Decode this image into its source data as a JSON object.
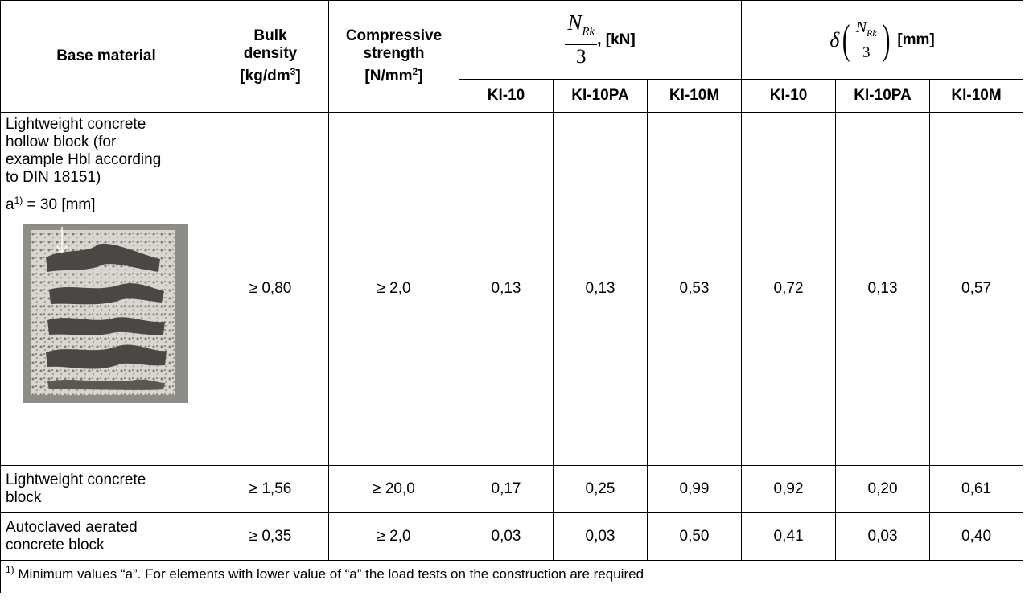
{
  "table": {
    "headers": {
      "base_material": "Base material",
      "bulk_density": [
        "Bulk",
        "density",
        "[kg/dm",
        "3",
        "]"
      ],
      "compressive_strength": [
        "Compressive",
        "strength",
        "[N/mm",
        "2",
        "]"
      ],
      "load_group": {
        "numerator": "N",
        "subscript": "Rk",
        "denominator": "3",
        "unit": ", [kN]"
      },
      "disp_group": {
        "delta": "δ",
        "numerator": "N",
        "subscript": "Rk",
        "denominator": "3",
        "unit": "[mm]"
      },
      "sub": [
        "KI-10",
        "KI-10PA",
        "KI-10M",
        "KI-10",
        "KI-10PA",
        "KI-10M"
      ]
    },
    "rows": [
      {
        "material_lines": [
          "Lightweight concrete",
          "hollow block (for",
          "example Hbl according",
          "to DIN 18151)"
        ],
        "note": {
          "a": "a",
          "sup": "1)",
          "rest": " = 30 [mm]"
        },
        "photo_icon": "hollow-block-photo",
        "density": "≥ 0,80",
        "strength": "≥ 2,0",
        "values": [
          "0,13",
          "0,13",
          "0,53",
          "0,72",
          "0,13",
          "0,57"
        ]
      },
      {
        "material_lines": [
          "Lightweight concrete",
          "block"
        ],
        "density": "≥ 1,56",
        "strength": "≥ 20,0",
        "values": [
          "0,17",
          "0,25",
          "0,99",
          "0,92",
          "0,20",
          "0,61"
        ]
      },
      {
        "material_lines": [
          "Autoclaved aerated",
          "concrete block"
        ],
        "density": "≥ 0,35",
        "strength": "≥ 2,0",
        "values": [
          "0,03",
          "0,03",
          "0,50",
          "0,41",
          "0,03",
          "0,40"
        ]
      }
    ],
    "footnote": {
      "sup": "1)",
      "text": " Minimum values “a”. For elements with lower value of “a” the load tests on the construction are required"
    }
  },
  "colors": {
    "border": "#000000",
    "photo_background": "#8e8c86"
  }
}
